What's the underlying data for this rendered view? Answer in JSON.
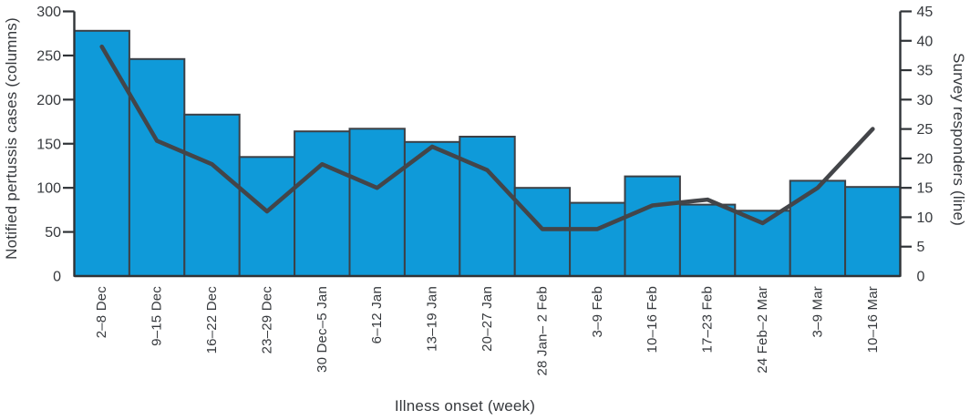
{
  "chart_data": {
    "type": "bar",
    "title": "",
    "categories": [
      "2–8 Dec",
      "9–15 Dec",
      "16–22 Dec",
      "23–29 Dec",
      "30 Dec–5 Jan",
      "6–12 Jan",
      "13–19 Jan",
      "20–27 Jan",
      "28 Jan– 2 Feb",
      "3–9 Feb",
      "10–16 Feb",
      "17–23 Feb",
      "24 Feb–2 Mar",
      "3–9 Mar",
      "10–16 Mar"
    ],
    "series": [
      {
        "name": "Notified pertussis cases",
        "render": "bar",
        "axis": "left",
        "values": [
          278,
          246,
          183,
          135,
          164,
          167,
          152,
          158,
          100,
          83,
          113,
          81,
          74,
          108,
          101
        ]
      },
      {
        "name": "Survey responders",
        "render": "line",
        "axis": "right",
        "values": [
          39,
          23,
          19,
          11,
          19,
          15,
          22,
          18,
          8,
          8,
          12,
          13,
          9,
          15,
          25
        ]
      }
    ],
    "xlabel": "Illness onset (week)",
    "ylabel_left": "Notified pertussis cases (columns)",
    "ylabel_right": "Survey responders (line)",
    "ylim_left": [
      0,
      300
    ],
    "ylim_right": [
      0,
      45
    ],
    "yticks_left": [
      0,
      50,
      100,
      150,
      200,
      250,
      300
    ],
    "yticks_right": [
      0,
      5,
      10,
      15,
      20,
      25,
      30,
      35,
      40,
      45
    ],
    "grid": false,
    "legend": "none",
    "colors": {
      "bar_fill": "#0f9ad9",
      "bar_stroke": "#3c4046",
      "line": "#434549",
      "axis": "#2f3337",
      "text": "#36393d"
    }
  }
}
